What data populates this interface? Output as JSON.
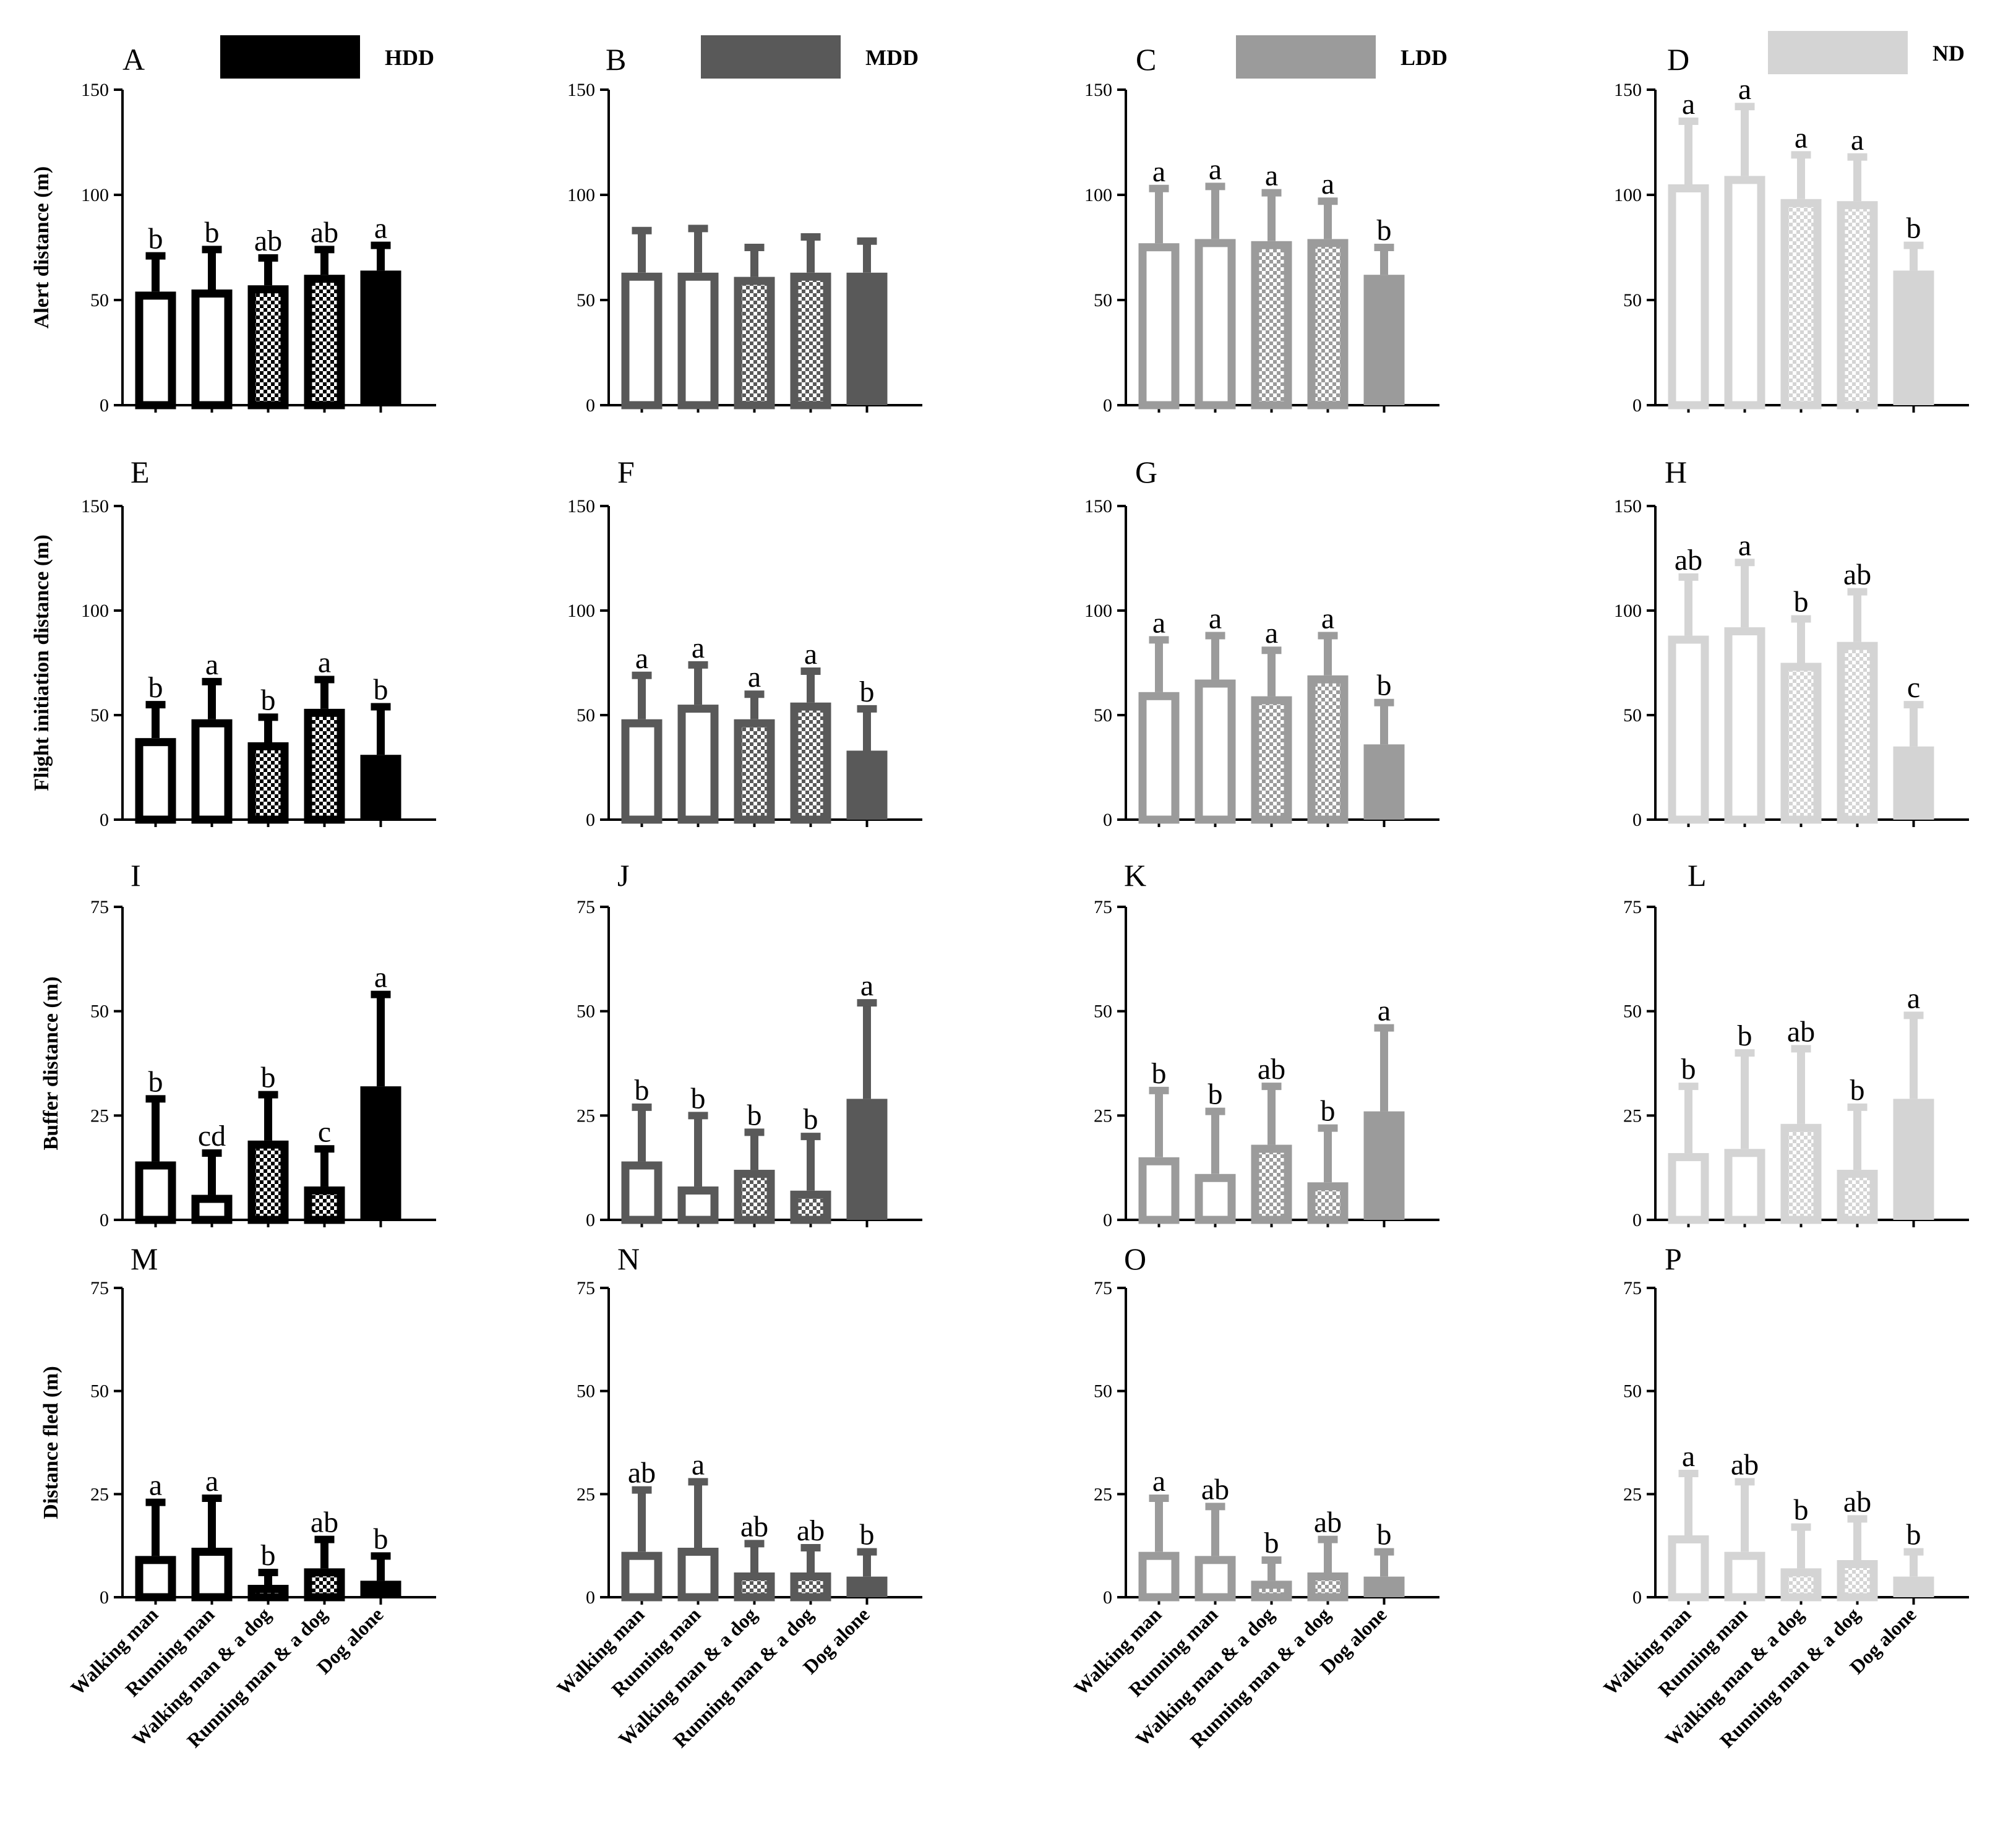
{
  "chart_data": {
    "type": "bar",
    "categories": [
      "Walking man",
      "Running man",
      "Walking man & a dog",
      "Running man & a dog",
      "Dog alone"
    ],
    "groups": [
      {
        "name": "HDD",
        "color": "#000000"
      },
      {
        "name": "MDD",
        "color": "#595959"
      },
      {
        "name": "LDD",
        "color": "#9b9b9b"
      },
      {
        "name": "ND",
        "color": "#d4d4d4"
      }
    ],
    "metrics": [
      {
        "ylabel": "Alert distance (m)",
        "ylim": [
          0,
          150
        ],
        "yticks": [
          "0",
          "50",
          "100",
          "150"
        ]
      },
      {
        "ylabel": "Flight initiation distance (m)",
        "ylim": [
          0,
          150
        ],
        "yticks": [
          "0",
          "50",
          "100",
          "150"
        ]
      },
      {
        "ylabel": "Buffer distance (m)",
        "ylim": [
          0,
          75
        ],
        "yticks": [
          "0",
          "25",
          "50",
          "75"
        ]
      },
      {
        "ylabel": "Distance fled (m)",
        "ylim": [
          0,
          75
        ],
        "yticks": [
          "0",
          "25",
          "50",
          "75"
        ]
      }
    ],
    "panels": [
      {
        "letter": "A",
        "metric": 0,
        "group": 0,
        "values": [
          54,
          55,
          57,
          62,
          64
        ],
        "errors": [
          71,
          74,
          70,
          74,
          76
        ],
        "labels": [
          "b",
          "b",
          "ab",
          "ab",
          "a"
        ]
      },
      {
        "letter": "B",
        "metric": 0,
        "group": 1,
        "values": [
          63,
          63,
          61,
          63,
          63
        ],
        "errors": [
          83,
          84,
          75,
          80,
          78
        ],
        "labels": [
          "",
          "",
          "",
          "",
          ""
        ]
      },
      {
        "letter": "C",
        "metric": 0,
        "group": 2,
        "values": [
          77,
          79,
          78,
          79,
          62
        ],
        "errors": [
          103,
          104,
          101,
          97,
          75
        ],
        "labels": [
          "a",
          "a",
          "a",
          "a",
          "b"
        ]
      },
      {
        "letter": "D",
        "metric": 0,
        "group": 3,
        "values": [
          105,
          109,
          98,
          97,
          64
        ],
        "errors": [
          135,
          142,
          119,
          118,
          76
        ],
        "labels": [
          "a",
          "a",
          "a",
          "a",
          "b"
        ]
      },
      {
        "letter": "E",
        "metric": 1,
        "group": 0,
        "values": [
          39,
          48,
          37,
          53,
          31
        ],
        "errors": [
          55,
          66,
          49,
          67,
          54
        ],
        "labels": [
          "b",
          "a",
          "b",
          "a",
          "b"
        ]
      },
      {
        "letter": "F",
        "metric": 1,
        "group": 1,
        "values": [
          48,
          55,
          48,
          56,
          33
        ],
        "errors": [
          69,
          74,
          60,
          71,
          53
        ],
        "labels": [
          "a",
          "a",
          "a",
          "a",
          "b"
        ]
      },
      {
        "letter": "G",
        "metric": 1,
        "group": 2,
        "values": [
          61,
          67,
          59,
          69,
          36
        ],
        "errors": [
          86,
          88,
          81,
          88,
          56
        ],
        "labels": [
          "a",
          "a",
          "a",
          "a",
          "b"
        ]
      },
      {
        "letter": "H",
        "metric": 1,
        "group": 3,
        "values": [
          88,
          92,
          75,
          85,
          35
        ],
        "errors": [
          116,
          123,
          96,
          109,
          55
        ],
        "labels": [
          "ab",
          "a",
          "b",
          "ab",
          "c"
        ]
      },
      {
        "letter": "I",
        "metric": 2,
        "group": 0,
        "values": [
          14,
          6,
          19,
          8,
          32
        ],
        "errors": [
          29,
          16,
          30,
          17,
          54
        ],
        "labels": [
          "b",
          "cd",
          "b",
          "c",
          "a"
        ]
      },
      {
        "letter": "J",
        "metric": 2,
        "group": 1,
        "values": [
          14,
          8,
          12,
          7,
          29
        ],
        "errors": [
          27,
          25,
          21,
          20,
          52
        ],
        "labels": [
          "b",
          "b",
          "b",
          "b",
          "a"
        ]
      },
      {
        "letter": "K",
        "metric": 2,
        "group": 2,
        "values": [
          15,
          11,
          18,
          9,
          26
        ],
        "errors": [
          31,
          26,
          32,
          22,
          46
        ],
        "labels": [
          "b",
          "b",
          "ab",
          "b",
          "a"
        ]
      },
      {
        "letter": "L",
        "metric": 2,
        "group": 3,
        "values": [
          16,
          17,
          23,
          12,
          29
        ],
        "errors": [
          32,
          40,
          41,
          27,
          49
        ],
        "labels": [
          "b",
          "b",
          "ab",
          "b",
          "a"
        ]
      },
      {
        "letter": "M",
        "metric": 3,
        "group": 0,
        "values": [
          10,
          12,
          3,
          7,
          4
        ],
        "errors": [
          23,
          24,
          6,
          14,
          10
        ],
        "labels": [
          "a",
          "a",
          "b",
          "ab",
          "b"
        ]
      },
      {
        "letter": "N",
        "metric": 3,
        "group": 1,
        "values": [
          11,
          12,
          6,
          6,
          5
        ],
        "errors": [
          26,
          28,
          13,
          12,
          11
        ],
        "labels": [
          "ab",
          "a",
          "ab",
          "ab",
          "b"
        ]
      },
      {
        "letter": "O",
        "metric": 3,
        "group": 2,
        "values": [
          11,
          10,
          4,
          6,
          5
        ],
        "errors": [
          24,
          22,
          9,
          14,
          11
        ],
        "labels": [
          "a",
          "ab",
          "b",
          "ab",
          "b"
        ]
      },
      {
        "letter": "P",
        "metric": 3,
        "group": 3,
        "values": [
          15,
          11,
          7,
          9,
          5
        ],
        "errors": [
          30,
          28,
          17,
          19,
          11
        ],
        "labels": [
          "a",
          "ab",
          "b",
          "ab",
          "b"
        ]
      }
    ]
  }
}
